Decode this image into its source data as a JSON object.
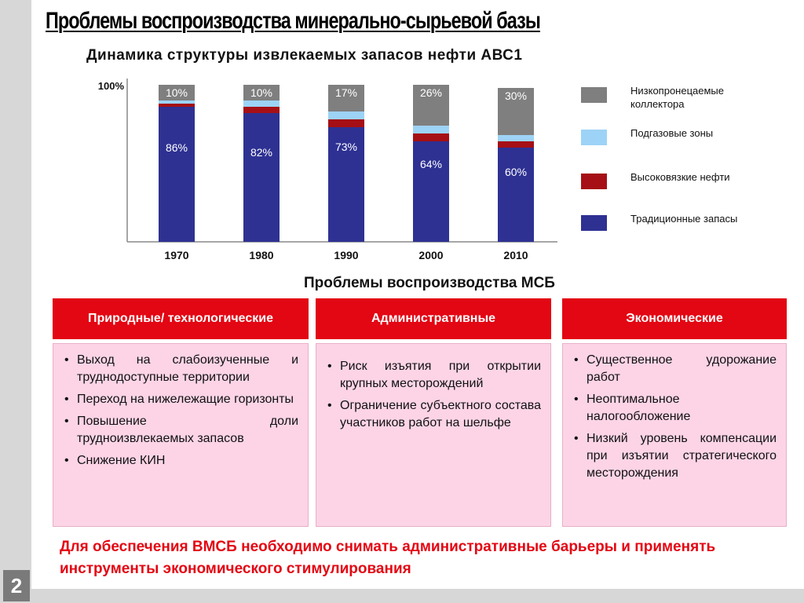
{
  "slide": {
    "title": "Проблемы воспроизводства минерально-сырьевой базы",
    "page_number": "2"
  },
  "chart_data": {
    "type": "bar",
    "stacked": true,
    "title": "Динамика структуры извлекаемых запасов нефти АВС1",
    "y_top_label": "100%",
    "ylim": [
      0,
      100
    ],
    "categories": [
      "1970",
      "1980",
      "1990",
      "2000",
      "2010"
    ],
    "series": [
      {
        "name": "Традиционные запасы",
        "color": "#2e3192",
        "values": [
          86,
          82,
          73,
          64,
          60
        ],
        "labels": [
          "86%",
          "82%",
          "73%",
          "64%",
          "60%"
        ]
      },
      {
        "name": "Высоковязкие нефти",
        "color": "#a50f15",
        "values": [
          2,
          4,
          5,
          5,
          4
        ],
        "labels": [
          "",
          "",
          "",
          "",
          ""
        ]
      },
      {
        "name": "Подгазовые зоны",
        "color": "#9dd3f6",
        "values": [
          2,
          4,
          5,
          5,
          4
        ],
        "labels": [
          "",
          "",
          "",
          "",
          ""
        ]
      },
      {
        "name": "Низкопронецаемые коллектора",
        "color": "#7f7f7f",
        "values": [
          10,
          10,
          17,
          26,
          30
        ],
        "labels": [
          "10%",
          "10%",
          "17%",
          "26%",
          "30%"
        ]
      }
    ],
    "legend_placement": "right"
  },
  "legend": [
    {
      "label": "Низкопронецаемые коллектора",
      "color": "#7f7f7f"
    },
    {
      "label": "Подгазовые зоны",
      "color": "#9dd3f6"
    },
    {
      "label": "Высоковязкие нефти",
      "color": "#a50f15"
    },
    {
      "label": "Традиционные запасы",
      "color": "#2e3192"
    }
  ],
  "problems": {
    "title": "Проблемы воспроизводства МСБ",
    "columns": [
      {
        "header": "Природные/ технологические",
        "items": [
          "Выход на слабоизученные и труднодоступные территории",
          "Переход на нижележащие горизонты",
          "Повышение доли трудноизвлекаемых запасов",
          "Снижение КИН"
        ]
      },
      {
        "header": "Административные",
        "items": [
          "Риск изъятия при открытии крупных месторождений",
          "Ограничение субъектного состава участников работ на шельфе"
        ]
      },
      {
        "header": "Экономические",
        "items": [
          "Существенное удорожание работ",
          "Неоптимальное налогообложение",
          "Низкий уровень компенсации при изъятии стратегического месторождения"
        ]
      }
    ]
  },
  "conclusion": "Для обеспечения ВМСБ необходимо снимать административные барьеры и применять инструменты экономического стимулирования",
  "colors": {
    "accent_red": "#e30613",
    "panel_pink": "#fcd4e6"
  }
}
